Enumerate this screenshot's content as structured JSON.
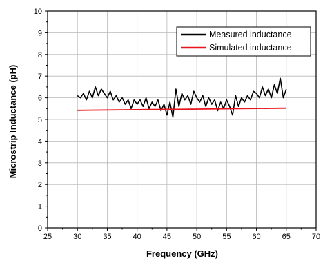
{
  "chart_data": {
    "type": "line",
    "xlabel": "Frequency (GHz)",
    "ylabel": "Microstrip Inductance (pH)",
    "xlim": [
      25,
      70
    ],
    "ylim": [
      0,
      10
    ],
    "xticks": [
      25,
      30,
      35,
      40,
      45,
      50,
      55,
      60,
      65,
      70
    ],
    "yticks": [
      0,
      1,
      2,
      3,
      4,
      5,
      6,
      7,
      8,
      9,
      10
    ],
    "grid": true,
    "legend_position": "top-right",
    "series": [
      {
        "name": "Measured inductance",
        "color": "#000000",
        "x": [
          30,
          30.5,
          31,
          31.5,
          32,
          32.5,
          33,
          33.5,
          34,
          34.5,
          35,
          35.5,
          36,
          36.5,
          37,
          37.5,
          38,
          38.5,
          39,
          39.5,
          40,
          40.5,
          41,
          41.5,
          42,
          42.5,
          43,
          43.5,
          44,
          44.5,
          45,
          45.5,
          46,
          46.5,
          47,
          47.5,
          48,
          48.5,
          49,
          49.5,
          50,
          50.5,
          51,
          51.5,
          52,
          52.5,
          53,
          53.5,
          54,
          54.5,
          55,
          55.5,
          56,
          56.5,
          57,
          57.5,
          58,
          58.5,
          59,
          59.5,
          60,
          60.5,
          61,
          61.5,
          62,
          62.5,
          63,
          63.5,
          64,
          64.5,
          65
        ],
        "y": [
          6.1,
          6.0,
          6.2,
          5.9,
          6.3,
          6.0,
          6.5,
          6.1,
          6.4,
          6.2,
          6.0,
          6.3,
          5.9,
          6.1,
          5.8,
          6.0,
          5.7,
          5.9,
          5.5,
          5.9,
          5.7,
          5.9,
          5.6,
          6.0,
          5.5,
          5.8,
          5.6,
          5.9,
          5.4,
          5.7,
          5.2,
          5.8,
          5.1,
          6.4,
          5.6,
          6.2,
          5.9,
          6.1,
          5.7,
          6.3,
          6.0,
          5.8,
          6.1,
          5.6,
          6.0,
          5.7,
          5.9,
          5.4,
          5.8,
          5.5,
          5.9,
          5.6,
          5.2,
          6.1,
          5.6,
          6.0,
          5.8,
          6.1,
          5.9,
          6.3,
          6.2,
          6.0,
          6.5,
          6.1,
          6.4,
          6.0,
          6.6,
          6.2,
          6.9,
          6.0,
          6.4
        ]
      },
      {
        "name": "Simulated inductance",
        "color": "#e8141c",
        "x": [
          30,
          65
        ],
        "y": [
          5.42,
          5.52
        ]
      }
    ]
  }
}
